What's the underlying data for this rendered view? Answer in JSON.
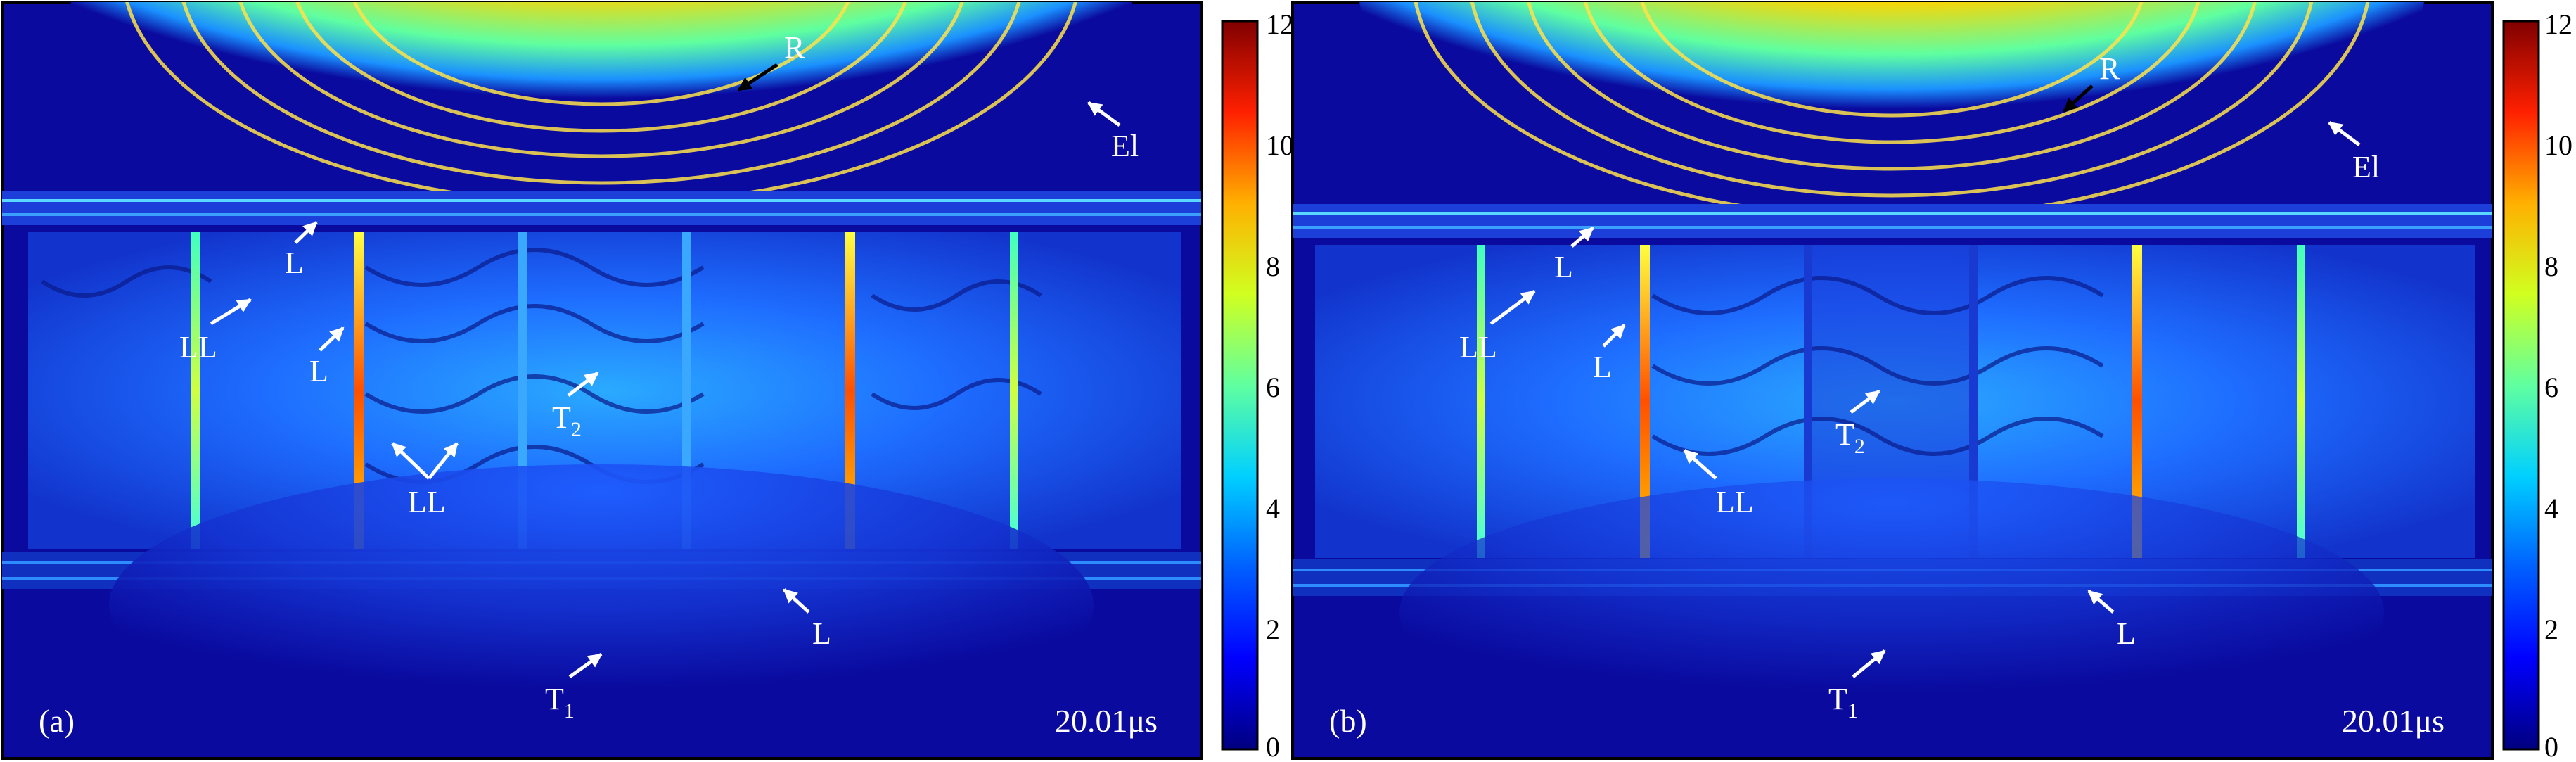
{
  "panels": [
    {
      "id": "a",
      "panel_label": "(a)",
      "time_label": "20.01μs",
      "labels": {
        "R": "R",
        "El": "El",
        "L_top": "L",
        "L_mid": "L",
        "L_bottom": "L",
        "LL_left": "LL",
        "LL_right": "LL",
        "T2": "T",
        "T2_sub": "2",
        "T1": "T",
        "T1_sub": "1"
      }
    },
    {
      "id": "b",
      "panel_label": "(b)",
      "time_label": "20.01μs",
      "labels": {
        "R": "R",
        "El": "El",
        "L_top": "L",
        "L_mid": "L",
        "L_bottom": "L",
        "LL_left": "LL",
        "LL_right": "LL",
        "T2": "T",
        "T2_sub": "2",
        "T1": "T",
        "T1_sub": "1"
      }
    }
  ],
  "colorbar": {
    "ticks": [
      "12",
      "10",
      "8",
      "6",
      "4",
      "2",
      "0"
    ],
    "colormap": [
      "#000080",
      "#0000ff",
      "#0080ff",
      "#00ffff",
      "#80ff80",
      "#ffff00",
      "#ff8000",
      "#ff0000",
      "#800000"
    ]
  },
  "colors": {
    "background_field": "#0a0a9e",
    "label_color": "#ffffff"
  }
}
